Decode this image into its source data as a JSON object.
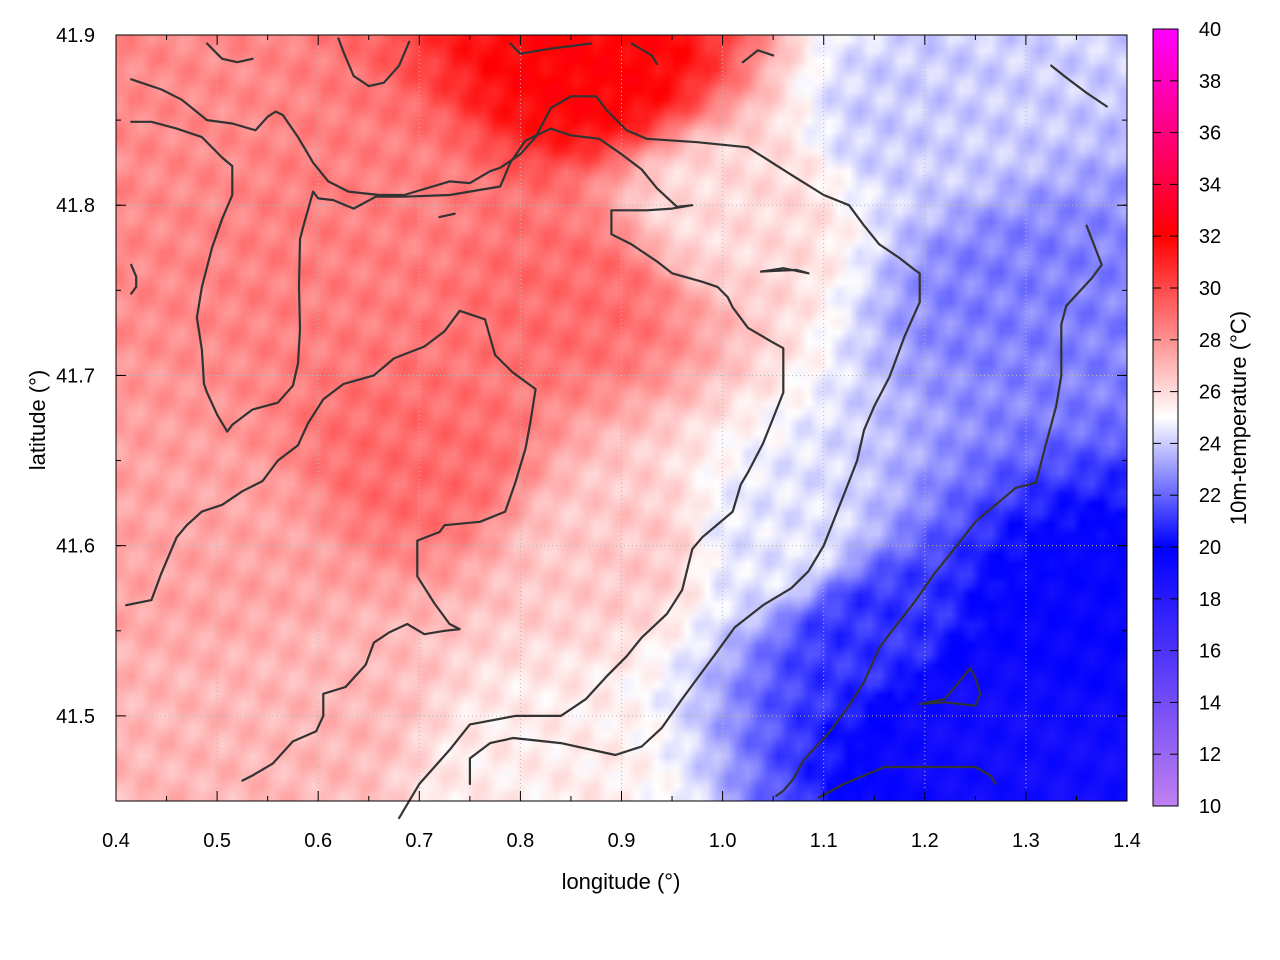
{
  "chart_data": {
    "type": "heatmap",
    "xlabel": "longitude (°)",
    "ylabel": "latitude (°)",
    "colorbar_label": "10m-temperature (°C)",
    "xlim": [
      0.4,
      1.4
    ],
    "ylim": [
      41.45,
      41.9
    ],
    "x_ticks": [
      "0.4",
      "0.5",
      "0.6",
      "0.7",
      "0.8",
      "0.9",
      "1.0",
      "1.1",
      "1.2",
      "1.3",
      "1.4"
    ],
    "y_ticks": [
      "41.5",
      "41.6",
      "41.7",
      "41.8",
      "41.9"
    ],
    "colorbar_range": [
      10,
      40
    ],
    "colorbar_ticks": [
      "10",
      "12",
      "14",
      "16",
      "18",
      "20",
      "22",
      "24",
      "26",
      "28",
      "30",
      "32",
      "34",
      "36",
      "38",
      "40"
    ],
    "colorscale": [
      {
        "value": 10,
        "color": "#c080f0"
      },
      {
        "value": 20,
        "color": "#0000ff"
      },
      {
        "value": 25,
        "color": "#ffffff"
      },
      {
        "value": 32,
        "color": "#ff0000"
      },
      {
        "value": 40,
        "color": "#ff00ff"
      }
    ],
    "grid": true,
    "field_samples": [
      {
        "lon": 0.45,
        "lat": 41.85,
        "temp": 28.2
      },
      {
        "lon": 0.65,
        "lat": 41.8,
        "temp": 28.5
      },
      {
        "lon": 0.87,
        "lat": 41.88,
        "temp": 32.0
      },
      {
        "lon": 0.85,
        "lat": 41.75,
        "temp": 29.0
      },
      {
        "lon": 0.7,
        "lat": 41.65,
        "temp": 29.0
      },
      {
        "lon": 0.5,
        "lat": 41.6,
        "temp": 27.5
      },
      {
        "lon": 0.6,
        "lat": 41.5,
        "temp": 27.0
      },
      {
        "lon": 0.9,
        "lat": 41.6,
        "temp": 26.5
      },
      {
        "lon": 1.0,
        "lat": 41.8,
        "temp": 26.0
      },
      {
        "lon": 1.05,
        "lat": 41.6,
        "temp": 24.5
      },
      {
        "lon": 1.2,
        "lat": 41.85,
        "temp": 24.0
      },
      {
        "lon": 1.3,
        "lat": 41.75,
        "temp": 22.5
      },
      {
        "lon": 1.15,
        "lat": 41.55,
        "temp": 21.0
      },
      {
        "lon": 1.25,
        "lat": 41.5,
        "temp": 19.0
      },
      {
        "lon": 1.35,
        "lat": 41.55,
        "temp": 19.5
      },
      {
        "lon": 1.35,
        "lat": 41.47,
        "temp": 19.0
      },
      {
        "lon": 0.8,
        "lat": 41.47,
        "temp": 25.5
      },
      {
        "lon": 0.45,
        "lat": 41.47,
        "temp": 27.0
      }
    ],
    "contours": [
      [
        [
          0.415,
          41.874
        ],
        [
          0.445,
          41.868
        ],
        [
          0.465,
          41.862
        ],
        [
          0.49,
          41.85
        ],
        [
          0.515,
          41.848
        ],
        [
          0.538,
          41.844
        ],
        [
          0.55,
          41.852
        ],
        [
          0.558,
          41.855
        ],
        [
          0.565,
          41.853
        ],
        [
          0.58,
          41.84
        ],
        [
          0.595,
          41.825
        ],
        [
          0.61,
          41.814
        ],
        [
          0.63,
          41.808
        ],
        [
          0.66,
          41.806
        ],
        [
          0.685,
          41.806
        ],
        [
          0.73,
          41.814
        ],
        [
          0.75,
          41.813
        ],
        [
          0.77,
          41.82
        ],
        [
          0.78,
          41.822
        ],
        [
          0.8,
          41.83
        ],
        [
          0.815,
          41.84
        ],
        [
          0.83,
          41.857
        ],
        [
          0.85,
          41.864
        ],
        [
          0.875,
          41.864
        ],
        [
          0.885,
          41.856
        ],
        [
          0.905,
          41.844
        ],
        [
          0.925,
          41.839
        ],
        [
          0.975,
          41.837
        ],
        [
          1.025,
          41.834
        ],
        [
          1.065,
          41.819
        ],
        [
          1.1,
          41.806
        ],
        [
          1.125,
          41.8
        ],
        [
          1.14,
          41.788
        ],
        [
          1.155,
          41.777
        ],
        [
          1.175,
          41.769
        ],
        [
          1.19,
          41.762
        ],
        [
          1.195,
          41.76
        ],
        [
          1.195,
          41.743
        ],
        [
          1.18,
          41.723
        ],
        [
          1.165,
          41.699
        ],
        [
          1.15,
          41.682
        ],
        [
          1.14,
          41.668
        ],
        [
          1.133,
          41.65
        ],
        [
          1.12,
          41.63
        ],
        [
          1.1,
          41.6
        ],
        [
          1.085,
          41.585
        ],
        [
          1.068,
          41.575
        ],
        [
          1.04,
          41.565
        ],
        [
          1.012,
          41.552
        ],
        [
          0.995,
          41.538
        ],
        [
          0.975,
          41.522
        ],
        [
          0.96,
          41.51
        ],
        [
          0.94,
          41.493
        ],
        [
          0.92,
          41.482
        ],
        [
          0.894,
          41.477
        ],
        [
          0.84,
          41.484
        ],
        [
          0.793,
          41.487
        ],
        [
          0.77,
          41.484
        ],
        [
          0.75,
          41.475
        ],
        [
          0.75,
          41.46
        ]
      ],
      [
        [
          0.415,
          41.849
        ],
        [
          0.435,
          41.849
        ],
        [
          0.46,
          41.845
        ],
        [
          0.485,
          41.84
        ],
        [
          0.505,
          41.828
        ],
        [
          0.515,
          41.823
        ],
        [
          0.515,
          41.806
        ],
        [
          0.505,
          41.792
        ],
        [
          0.495,
          41.775
        ],
        [
          0.485,
          41.752
        ],
        [
          0.48,
          41.734
        ],
        [
          0.485,
          41.715
        ],
        [
          0.487,
          41.695
        ],
        [
          0.49,
          41.69
        ],
        [
          0.5,
          41.677
        ],
        [
          0.51,
          41.667
        ],
        [
          0.515,
          41.671
        ],
        [
          0.535,
          41.68
        ],
        [
          0.56,
          41.684
        ],
        [
          0.575,
          41.694
        ],
        [
          0.58,
          41.707
        ],
        [
          0.582,
          41.727
        ],
        [
          0.581,
          41.752
        ],
        [
          0.582,
          41.78
        ],
        [
          0.585,
          41.787
        ],
        [
          0.595,
          41.808
        ],
        [
          0.6,
          41.804
        ],
        [
          0.615,
          41.803
        ],
        [
          0.635,
          41.798
        ],
        [
          0.657,
          41.805
        ],
        [
          0.685,
          41.805
        ],
        [
          0.73,
          41.806
        ],
        [
          0.78,
          41.811
        ],
        [
          0.79,
          41.825
        ],
        [
          0.805,
          41.838
        ],
        [
          0.83,
          41.845
        ],
        [
          0.85,
          41.841
        ],
        [
          0.878,
          41.839
        ],
        [
          0.9,
          41.83
        ],
        [
          0.92,
          41.821
        ],
        [
          0.935,
          41.81
        ],
        [
          0.955,
          41.799
        ],
        [
          0.97,
          41.8
        ],
        [
          0.95,
          41.798
        ],
        [
          0.925,
          41.797
        ],
        [
          0.89,
          41.797
        ],
        [
          0.89,
          41.783
        ],
        [
          0.91,
          41.777
        ],
        [
          0.935,
          41.767
        ],
        [
          0.95,
          41.76
        ],
        [
          0.98,
          41.755
        ],
        [
          0.995,
          41.752
        ],
        [
          1.005,
          41.746
        ],
        [
          1.01,
          41.74
        ],
        [
          1.025,
          41.728
        ],
        [
          1.048,
          41.72
        ],
        [
          1.06,
          41.716
        ],
        [
          1.06,
          41.69
        ],
        [
          1.05,
          41.675
        ],
        [
          1.04,
          41.66
        ],
        [
          1.025,
          41.643
        ],
        [
          1.018,
          41.636
        ],
        [
          1.01,
          41.62
        ],
        [
          0.98,
          41.605
        ],
        [
          0.97,
          41.598
        ],
        [
          0.96,
          41.574
        ],
        [
          0.945,
          41.56
        ],
        [
          0.92,
          41.546
        ],
        [
          0.905,
          41.535
        ],
        [
          0.885,
          41.523
        ],
        [
          0.865,
          41.51
        ],
        [
          0.84,
          41.5
        ],
        [
          0.795,
          41.5
        ],
        [
          0.75,
          41.495
        ],
        [
          0.73,
          41.48
        ],
        [
          0.7,
          41.46
        ],
        [
          0.68,
          41.44
        ]
      ],
      [
        [
          0.735,
          41.795
        ],
        [
          0.72,
          41.793
        ],
        [
          0.735,
          41.795
        ]
      ],
      [
        [
          0.41,
          41.565
        ],
        [
          0.435,
          41.568
        ],
        [
          0.445,
          41.584
        ],
        [
          0.46,
          41.605
        ],
        [
          0.47,
          41.612
        ],
        [
          0.485,
          41.62
        ],
        [
          0.505,
          41.624
        ],
        [
          0.525,
          41.632
        ],
        [
          0.545,
          41.638
        ],
        [
          0.56,
          41.65
        ],
        [
          0.58,
          41.659
        ],
        [
          0.59,
          41.672
        ],
        [
          0.605,
          41.686
        ],
        [
          0.625,
          41.695
        ],
        [
          0.655,
          41.7
        ],
        [
          0.675,
          41.71
        ],
        [
          0.705,
          41.717
        ],
        [
          0.725,
          41.726
        ],
        [
          0.74,
          41.738
        ],
        [
          0.765,
          41.733
        ],
        [
          0.775,
          41.712
        ],
        [
          0.792,
          41.702
        ],
        [
          0.815,
          41.692
        ],
        [
          0.81,
          41.673
        ],
        [
          0.805,
          41.657
        ],
        [
          0.795,
          41.637
        ],
        [
          0.785,
          41.62
        ],
        [
          0.76,
          41.614
        ],
        [
          0.725,
          41.612
        ],
        [
          0.72,
          41.608
        ],
        [
          0.698,
          41.603
        ],
        [
          0.698,
          41.582
        ],
        [
          0.715,
          41.566
        ],
        [
          0.73,
          41.554
        ],
        [
          0.74,
          41.551
        ],
        [
          0.725,
          41.55
        ],
        [
          0.705,
          41.548
        ],
        [
          0.688,
          41.554
        ],
        [
          0.67,
          41.549
        ],
        [
          0.655,
          41.543
        ],
        [
          0.647,
          41.53
        ],
        [
          0.627,
          41.517
        ],
        [
          0.605,
          41.513
        ],
        [
          0.605,
          41.5
        ],
        [
          0.598,
          41.491
        ],
        [
          0.575,
          41.485
        ],
        [
          0.555,
          41.472
        ],
        [
          0.535,
          41.465
        ],
        [
          0.525,
          41.462
        ]
      ],
      [
        [
          1.038,
          41.761
        ],
        [
          1.073,
          41.762
        ],
        [
          1.085,
          41.76
        ],
        [
          1.06,
          41.763
        ],
        [
          1.038,
          41.761
        ]
      ],
      [
        [
          1.36,
          41.788
        ],
        [
          1.375,
          41.765
        ],
        [
          1.365,
          41.757
        ],
        [
          1.34,
          41.741
        ],
        [
          1.335,
          41.73
        ],
        [
          1.335,
          41.7
        ],
        [
          1.33,
          41.682
        ],
        [
          1.32,
          41.66
        ],
        [
          1.31,
          41.637
        ],
        [
          1.29,
          41.634
        ],
        [
          1.27,
          41.624
        ],
        [
          1.25,
          41.614
        ],
        [
          1.225,
          41.595
        ],
        [
          1.21,
          41.584
        ],
        [
          1.19,
          41.567
        ],
        [
          1.17,
          41.552
        ],
        [
          1.155,
          41.54
        ],
        [
          1.14,
          41.52
        ],
        [
          1.125,
          41.506
        ],
        [
          1.105,
          41.49
        ],
        [
          1.08,
          41.474
        ],
        [
          1.07,
          41.463
        ],
        [
          1.06,
          41.456
        ],
        [
          1.053,
          41.453
        ]
      ],
      [
        [
          1.195,
          41.507
        ],
        [
          1.22,
          41.51
        ],
        [
          1.245,
          41.528
        ],
        [
          1.25,
          41.522
        ],
        [
          1.255,
          41.513
        ],
        [
          1.25,
          41.506
        ],
        [
          1.22,
          41.508
        ],
        [
          1.195,
          41.507
        ]
      ],
      [
        [
          1.095,
          41.452
        ],
        [
          1.12,
          41.46
        ],
        [
          1.16,
          41.47
        ],
        [
          1.2,
          41.47
        ],
        [
          1.25,
          41.47
        ],
        [
          1.265,
          41.465
        ],
        [
          1.27,
          41.46
        ]
      ],
      [
        [
          1.325,
          41.882
        ],
        [
          1.34,
          41.875
        ],
        [
          1.36,
          41.866
        ],
        [
          1.38,
          41.858
        ]
      ],
      [
        [
          0.62,
          41.898
        ],
        [
          0.625,
          41.89
        ],
        [
          0.635,
          41.876
        ],
        [
          0.65,
          41.87
        ],
        [
          0.665,
          41.872
        ],
        [
          0.68,
          41.882
        ],
        [
          0.69,
          41.896
        ]
      ],
      [
        [
          0.49,
          41.895
        ],
        [
          0.505,
          41.886
        ],
        [
          0.52,
          41.884
        ],
        [
          0.535,
          41.886
        ]
      ],
      [
        [
          0.79,
          41.895
        ],
        [
          0.8,
          41.889
        ],
        [
          0.83,
          41.892
        ],
        [
          0.87,
          41.895
        ]
      ],
      [
        [
          0.91,
          41.895
        ],
        [
          0.93,
          41.888
        ],
        [
          0.935,
          41.883
        ]
      ],
      [
        [
          1.02,
          41.884
        ],
        [
          1.035,
          41.891
        ],
        [
          1.05,
          41.888
        ]
      ],
      [
        [
          0.415,
          41.765
        ],
        [
          0.42,
          41.758
        ],
        [
          0.42,
          41.752
        ],
        [
          0.415,
          41.748
        ]
      ]
    ]
  }
}
